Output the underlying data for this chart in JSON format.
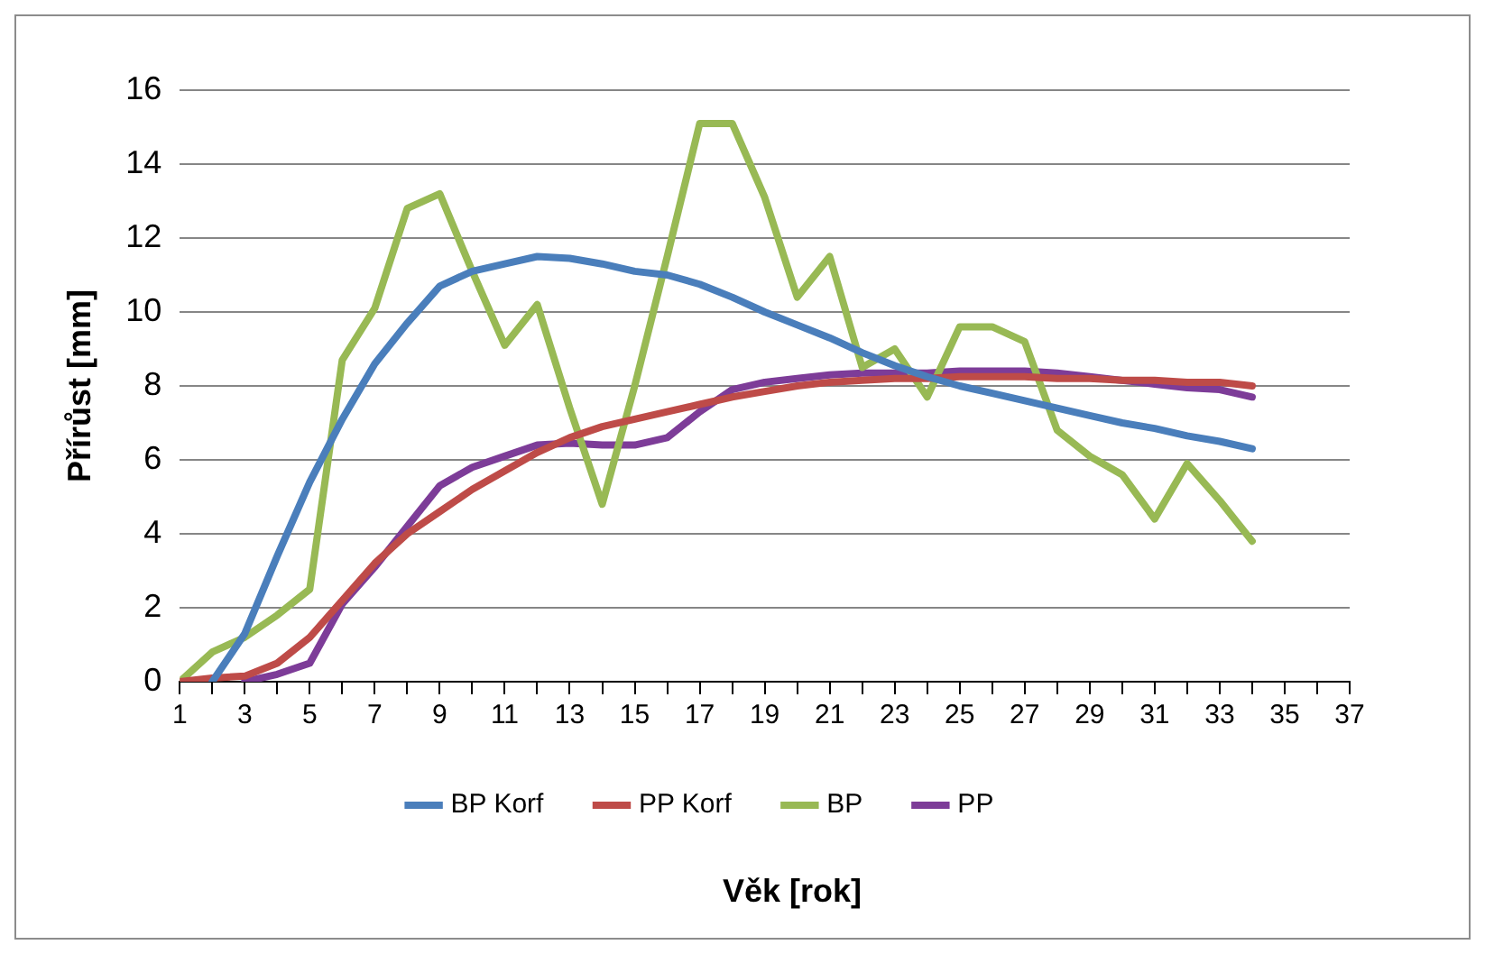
{
  "chart_data": {
    "type": "line",
    "xlabel": "Věk [rok]",
    "ylabel": "Přírůst [mm]",
    "x": [
      1,
      2,
      3,
      4,
      5,
      6,
      7,
      8,
      9,
      10,
      11,
      12,
      13,
      14,
      15,
      16,
      17,
      18,
      19,
      20,
      21,
      22,
      23,
      24,
      25,
      26,
      27,
      28,
      29,
      30,
      31,
      32,
      33,
      34
    ],
    "xlim": [
      1,
      37
    ],
    "xticks": [
      1,
      {
        "value": 2,
        "label": null
      },
      3,
      {
        "value": 4,
        "label": null
      },
      5,
      {
        "value": 6,
        "label": null
      },
      7,
      {
        "value": 8,
        "label": null
      },
      9,
      {
        "value": 10,
        "label": null
      },
      11,
      {
        "value": 12,
        "label": null
      },
      13,
      {
        "value": 14,
        "label": null
      },
      15,
      {
        "value": 16,
        "label": null
      },
      17,
      {
        "value": 18,
        "label": null
      },
      19,
      {
        "value": 20,
        "label": null
      },
      21,
      {
        "value": 22,
        "label": null
      },
      23,
      {
        "value": 24,
        "label": null
      },
      25,
      {
        "value": 26,
        "label": null
      },
      27,
      {
        "value": 28,
        "label": null
      },
      29,
      {
        "value": 30,
        "label": null
      },
      31,
      {
        "value": 32,
        "label": null
      },
      33,
      {
        "value": 34,
        "label": null
      },
      35,
      {
        "value": 36,
        "label": null
      },
      37
    ],
    "ylim": [
      0,
      16
    ],
    "yticks": [
      0,
      2,
      4,
      6,
      8,
      10,
      12,
      14,
      16
    ],
    "grid": "y",
    "legend": "bottom",
    "marker": "none",
    "line_style": "solid",
    "series": [
      {
        "name": "BP Korf",
        "color": "#4a7ebb",
        "values": [
          null,
          0,
          1.3,
          3.4,
          5.4,
          7.1,
          8.6,
          9.7,
          10.7,
          11.1,
          11.3,
          11.5,
          11.45,
          11.3,
          11.1,
          11.0,
          10.75,
          10.4,
          10.0,
          9.65,
          9.3,
          8.9,
          8.55,
          8.25,
          8.0,
          7.8,
          7.6,
          7.4,
          7.2,
          7.0,
          6.85,
          6.65,
          6.5,
          6.3
        ]
      },
      {
        "name": "PP Korf",
        "color": "#be4b48",
        "values": [
          0,
          0.1,
          0.15,
          0.5,
          1.2,
          2.2,
          3.2,
          4.0,
          4.6,
          5.2,
          5.7,
          6.2,
          6.6,
          6.9,
          7.1,
          7.3,
          7.5,
          7.7,
          7.85,
          8.0,
          8.1,
          8.15,
          8.2,
          8.2,
          8.25,
          8.25,
          8.25,
          8.2,
          8.2,
          8.15,
          8.15,
          8.1,
          8.1,
          8.0
        ]
      },
      {
        "name": "BP",
        "color": "#98b954",
        "values": [
          0,
          0.8,
          1.2,
          1.8,
          2.5,
          8.7,
          10.1,
          12.8,
          13.2,
          11.1,
          9.1,
          10.2,
          7.4,
          4.8,
          8.0,
          11.5,
          15.1,
          15.1,
          13.1,
          10.4,
          11.5,
          8.5,
          9.0,
          7.7,
          9.6,
          9.6,
          9.2,
          6.8,
          6.1,
          5.6,
          4.4,
          5.9,
          4.9,
          3.8
        ]
      },
      {
        "name": "PP",
        "color": "#7d3c98",
        "values": [
          null,
          null,
          0,
          0.2,
          0.5,
          2.1,
          3.1,
          4.2,
          5.3,
          5.8,
          6.1,
          6.4,
          6.45,
          6.4,
          6.4,
          6.6,
          7.3,
          7.9,
          8.1,
          8.2,
          8.3,
          8.35,
          8.35,
          8.35,
          8.4,
          8.4,
          8.4,
          8.35,
          8.25,
          8.15,
          8.05,
          7.95,
          7.9,
          7.7
        ]
      }
    ]
  }
}
